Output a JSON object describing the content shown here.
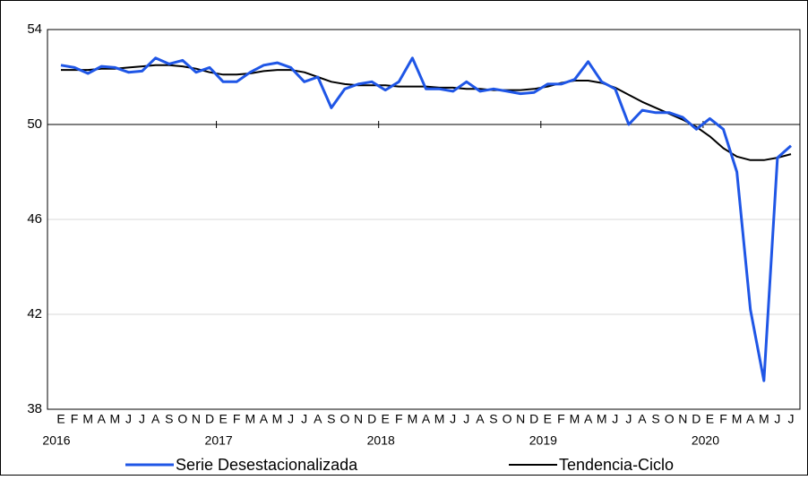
{
  "chart_data": {
    "type": "line",
    "categories": [
      "E",
      "F",
      "M",
      "A",
      "M",
      "J",
      "J",
      "A",
      "S",
      "O",
      "N",
      "D",
      "E",
      "F",
      "M",
      "A",
      "M",
      "J",
      "J",
      "A",
      "S",
      "O",
      "N",
      "D",
      "E",
      "F",
      "M",
      "A",
      "M",
      "J",
      "J",
      "A",
      "S",
      "O",
      "N",
      "D",
      "E",
      "F",
      "M",
      "A",
      "M",
      "J",
      "J",
      "A",
      "S",
      "O",
      "N",
      "D",
      "E",
      "F",
      "M",
      "A",
      "M",
      "J",
      "J"
    ],
    "year_labels": [
      "2016",
      "2017",
      "2018",
      "2019",
      "2020"
    ],
    "series": [
      {
        "name": "Serie Desestacionalizada",
        "color": "#1f56e6",
        "values": [
          52.5,
          52.4,
          52.15,
          52.45,
          52.4,
          52.2,
          52.25,
          52.8,
          52.55,
          52.7,
          52.2,
          52.4,
          51.8,
          51.8,
          52.2,
          52.5,
          52.6,
          52.4,
          51.8,
          52.0,
          50.7,
          51.5,
          51.7,
          51.8,
          51.45,
          51.8,
          52.8,
          51.5,
          51.5,
          51.4,
          51.8,
          51.4,
          51.5,
          51.4,
          51.3,
          51.35,
          51.7,
          51.7,
          51.9,
          52.65,
          51.8,
          51.5,
          50.0,
          50.6,
          50.5,
          50.5,
          50.3,
          49.8,
          50.25,
          49.8,
          48.0,
          42.2,
          39.2,
          48.6,
          49.1
        ]
      },
      {
        "name": "Tendencia-Ciclo",
        "color": "#000000",
        "values": [
          52.3,
          52.3,
          52.3,
          52.35,
          52.35,
          52.4,
          52.45,
          52.5,
          52.5,
          52.45,
          52.35,
          52.2,
          52.1,
          52.1,
          52.15,
          52.25,
          52.3,
          52.3,
          52.2,
          52.0,
          51.8,
          51.7,
          51.65,
          51.65,
          51.65,
          51.6,
          51.6,
          51.6,
          51.55,
          51.55,
          51.5,
          51.5,
          51.45,
          51.45,
          51.45,
          51.5,
          51.6,
          51.75,
          51.85,
          51.85,
          51.75,
          51.55,
          51.25,
          50.95,
          50.7,
          50.45,
          50.2,
          49.9,
          49.5,
          49.0,
          48.65,
          48.5,
          48.5,
          48.6,
          48.75
        ]
      }
    ],
    "ylim": [
      38,
      54
    ],
    "yticks": [
      38,
      42,
      46,
      50,
      54
    ],
    "grid": true,
    "reference_line": 50
  }
}
